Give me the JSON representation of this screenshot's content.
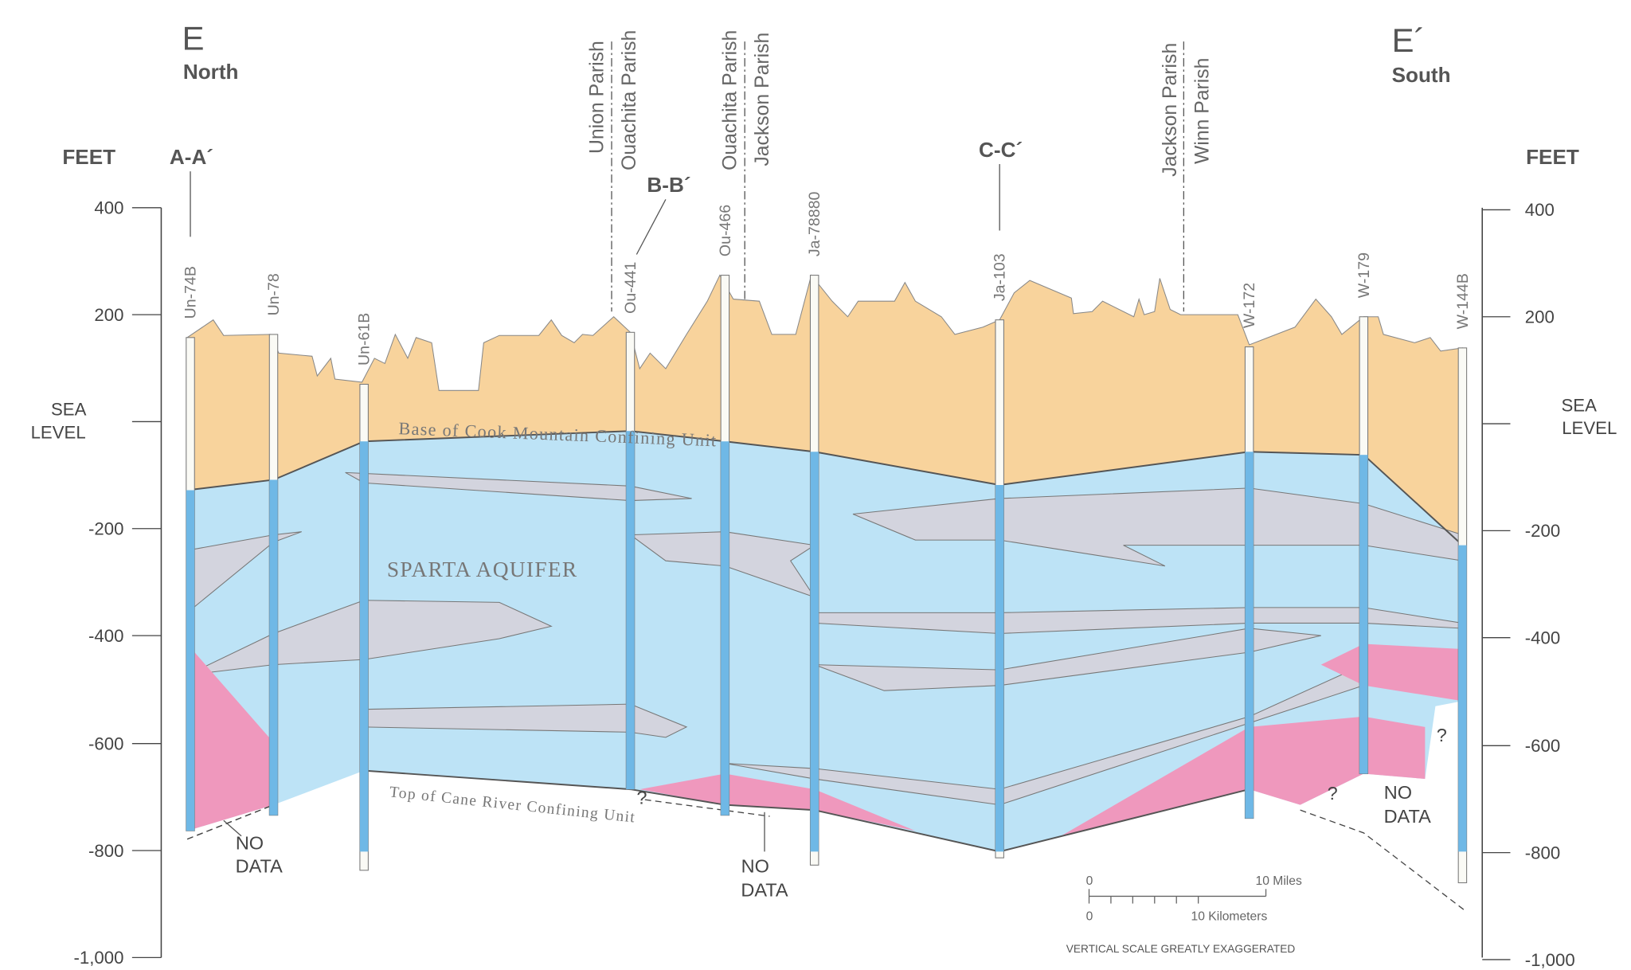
{
  "section": {
    "start": "E",
    "start_direction": "North",
    "end": "E´",
    "end_direction": "South"
  },
  "axis": {
    "unit_left": "FEET",
    "unit_right": "FEET",
    "sea_level": [
      "SEA",
      "LEVEL"
    ],
    "ticks": [
      "400",
      "200",
      "-200",
      "-400",
      "-600",
      "-800",
      "-1,000"
    ]
  },
  "cross_sections": [
    "A-A´",
    "B-B´",
    "C-C´"
  ],
  "parish_boundaries": [
    [
      "Union Parish",
      "Ouachita Parish"
    ],
    [
      "Ouachita Parish",
      "Jackson Parish"
    ],
    [
      "Jackson Parish",
      "Winn Parish"
    ]
  ],
  "wells": [
    "Un-74B",
    "Un-78",
    "Un-61B",
    "Ou-441",
    "Ou-466",
    "Ja-78880",
    "Ja-103",
    "W-172",
    "W-179",
    "W-144B"
  ],
  "units": {
    "top": "Base of Cook Mountain Confining Unit",
    "aquifer": "SPARTA AQUIFER",
    "bottom": "Top of Cane River Confining Unit"
  },
  "no_data": [
    [
      "NO",
      "DATA"
    ],
    [
      "NO",
      "DATA"
    ],
    [
      "NO",
      "DATA"
    ]
  ],
  "question_marks": [
    "?",
    "?",
    "?"
  ],
  "scale": {
    "miles_zero": "0",
    "miles": "10 Miles",
    "km_zero": "0",
    "km": "10 Kilometers",
    "note": "VERTICAL SCALE GREATLY EXAGGERATED"
  }
}
